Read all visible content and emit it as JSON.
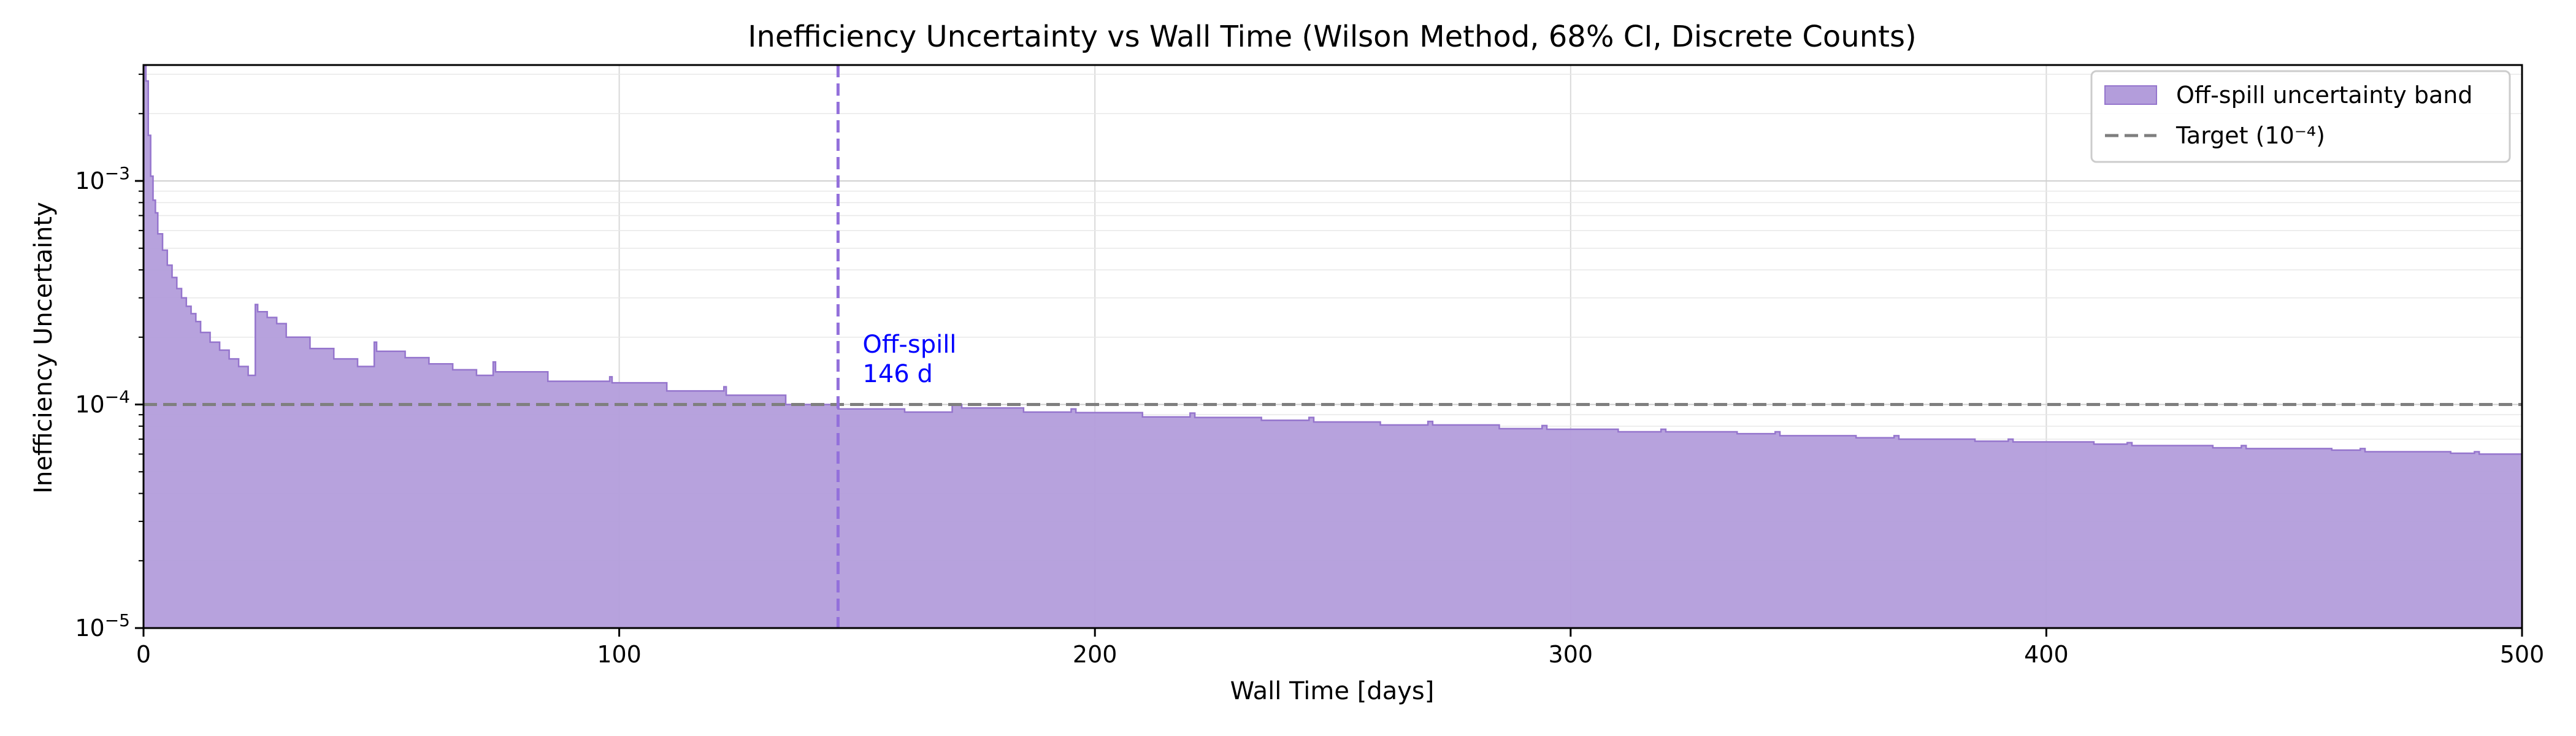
{
  "chart_data": {
    "type": "area",
    "title": "Inefficiency Uncertainty vs Wall Time (Wilson Method, 68% CI, Discrete Counts)",
    "xlabel": "Wall Time [days]",
    "ylabel": "Inefficiency Uncertainty",
    "xlim": [
      0,
      500
    ],
    "ylim": [
      1e-05,
      0.0033
    ],
    "yscale": "log",
    "grid": true,
    "legend_position": "top-right",
    "x_ticks": [
      "0",
      "100",
      "200",
      "300",
      "400",
      "500"
    ],
    "y_ticks": [
      {
        "base": "10",
        "exp": "−5"
      },
      {
        "base": "10",
        "exp": "−4"
      },
      {
        "base": "10",
        "exp": "−3"
      }
    ],
    "series": [
      {
        "name": "Off-spill uncertainty band",
        "color": "#b39ddb",
        "edge_color": "#9575cd",
        "x": [
          0.5,
          1.0,
          1.5,
          2.0,
          2.5,
          3.0,
          4.0,
          5.0,
          6.0,
          7.0,
          8.0,
          9.0,
          10.0,
          11.0,
          12.0,
          14.0,
          16.0,
          18.0,
          20.0,
          22.0,
          23.5,
          24.0,
          26.0,
          28.0,
          30.0,
          35.0,
          40.0,
          45.0,
          48.5,
          49.0,
          55.0,
          60.0,
          65.0,
          70.0,
          73.5,
          74.0,
          85.0,
          98.0,
          98.5,
          110.0,
          122.0,
          122.5,
          135.0,
          146.0,
          160.0,
          170.0,
          172.0,
          185.0,
          195.0,
          196.0,
          210.0,
          220.0,
          221.0,
          235.0,
          245.0,
          246.0,
          260.0,
          270.0,
          271.0,
          285.0,
          294.0,
          295.0,
          310.0,
          319.0,
          320.0,
          335.0,
          343.0,
          344.0,
          360.0,
          368.0,
          369.0,
          385.0,
          392.0,
          393.0,
          410.0,
          417.0,
          418.0,
          435.0,
          441.0,
          442.0,
          460.0,
          466.0,
          467.0,
          485.0,
          490.0,
          491.0,
          500.0
        ],
        "values": [
          0.0033,
          0.0028,
          0.0016,
          0.00105,
          0.00082,
          0.00072,
          0.00058,
          0.00049,
          0.00042,
          0.00037,
          0.00033,
          0.0003,
          0.000275,
          0.000255,
          0.000235,
          0.00021,
          0.00019,
          0.000175,
          0.00016,
          0.000148,
          0.000135,
          0.00028,
          0.00026,
          0.000245,
          0.00023,
          0.0002,
          0.000178,
          0.00016,
          0.000148,
          0.00019,
          0.000173,
          0.000162,
          0.000152,
          0.000143,
          0.000135,
          0.000155,
          0.00014,
          0.000127,
          0.000133,
          0.000125,
          0.000115,
          0.00012,
          0.00011,
          0.0001,
          9.55e-05,
          9.25e-05,
          0.0001,
          9.65e-05,
          9.25e-05,
          9.55e-05,
          9.2e-05,
          8.8e-05,
          9.15e-05,
          8.75e-05,
          8.5e-05,
          8.75e-05,
          8.35e-05,
          8.1e-05,
          8.4e-05,
          8.1e-05,
          7.8e-05,
          8.05e-05,
          7.75e-05,
          7.55e-05,
          7.75e-05,
          7.55e-05,
          7.4e-05,
          7.55e-05,
          7.25e-05,
          7.1e-05,
          7.25e-05,
          7e-05,
          6.85e-05,
          7e-05,
          6.8e-05,
          6.65e-05,
          6.75e-05,
          6.55e-05,
          6.4e-05,
          6.55e-05,
          6.35e-05,
          6.25e-05,
          6.35e-05,
          6.15e-05,
          6.05e-05,
          6.15e-05,
          6e-05
        ]
      },
      {
        "name": "Target (10⁻⁴)",
        "color": "#7f7f7f",
        "y": 0.0001
      }
    ],
    "annotations": [
      {
        "x": 146,
        "lines": [
          "Off-spill",
          "146 d"
        ],
        "color": "#0000ff",
        "line_color": "#9370db"
      }
    ]
  }
}
